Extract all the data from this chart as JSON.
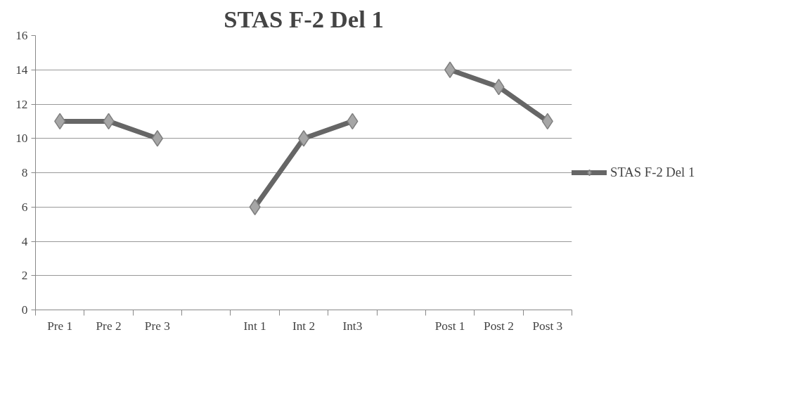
{
  "chart_data": {
    "type": "line",
    "title": "STAS F-2 Del 1",
    "categories": [
      "Pre 1",
      "Pre 2",
      "Pre 3",
      null,
      "Int 1",
      "Int 2",
      "Int3",
      null,
      "Post 1",
      "Post 2",
      "Post 3"
    ],
    "series": [
      {
        "name": "STAS F-2 Del 1",
        "color": "#666666",
        "values": [
          11,
          11,
          10,
          null,
          6,
          10,
          11,
          null,
          14,
          13,
          11
        ]
      }
    ],
    "ylim": [
      0,
      16
    ],
    "yticks": [
      0,
      2,
      4,
      6,
      8,
      10,
      12,
      14,
      16
    ],
    "grid": "y",
    "legend": "right",
    "marker": "diamond"
  }
}
